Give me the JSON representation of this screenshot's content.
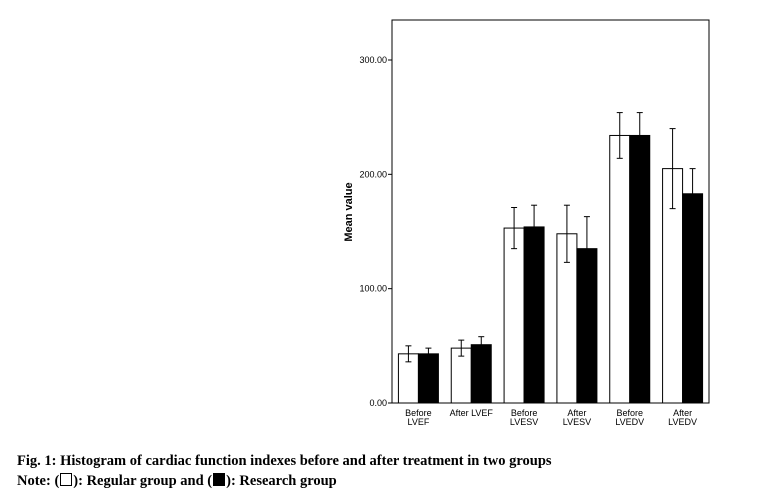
{
  "chart_data": {
    "type": "bar",
    "categories": [
      [
        "Before",
        "LVEF"
      ],
      [
        "After LVEF"
      ],
      [
        "Before",
        "LVESV"
      ],
      [
        "After",
        "LVESV"
      ],
      [
        "Before",
        "LVEDV"
      ],
      [
        "After",
        "LVEDV"
      ]
    ],
    "series": [
      {
        "name": "Regular group",
        "color": "#ffffff",
        "values": [
          43,
          48,
          153,
          148,
          234,
          205
        ],
        "errors": [
          7,
          7,
          18,
          25,
          20,
          35
        ]
      },
      {
        "name": "Research group",
        "color": "#000000",
        "values": [
          43,
          51,
          154,
          135,
          234,
          183
        ],
        "errors": [
          5,
          7,
          19,
          28,
          20,
          22
        ]
      }
    ],
    "ylabel": "Mean value",
    "ylim": [
      0,
      300
    ],
    "yticks": [
      "0.00",
      "100.00",
      "200.00",
      "300.00"
    ],
    "grid": false
  },
  "caption": {
    "line1": "Fig. 1: Histogram of cardiac function indexes before and after treatment in two groups",
    "note_prefix": "Note: (",
    "note_mid1": "): Regular group and (",
    "note_mid2": "): Research group"
  }
}
